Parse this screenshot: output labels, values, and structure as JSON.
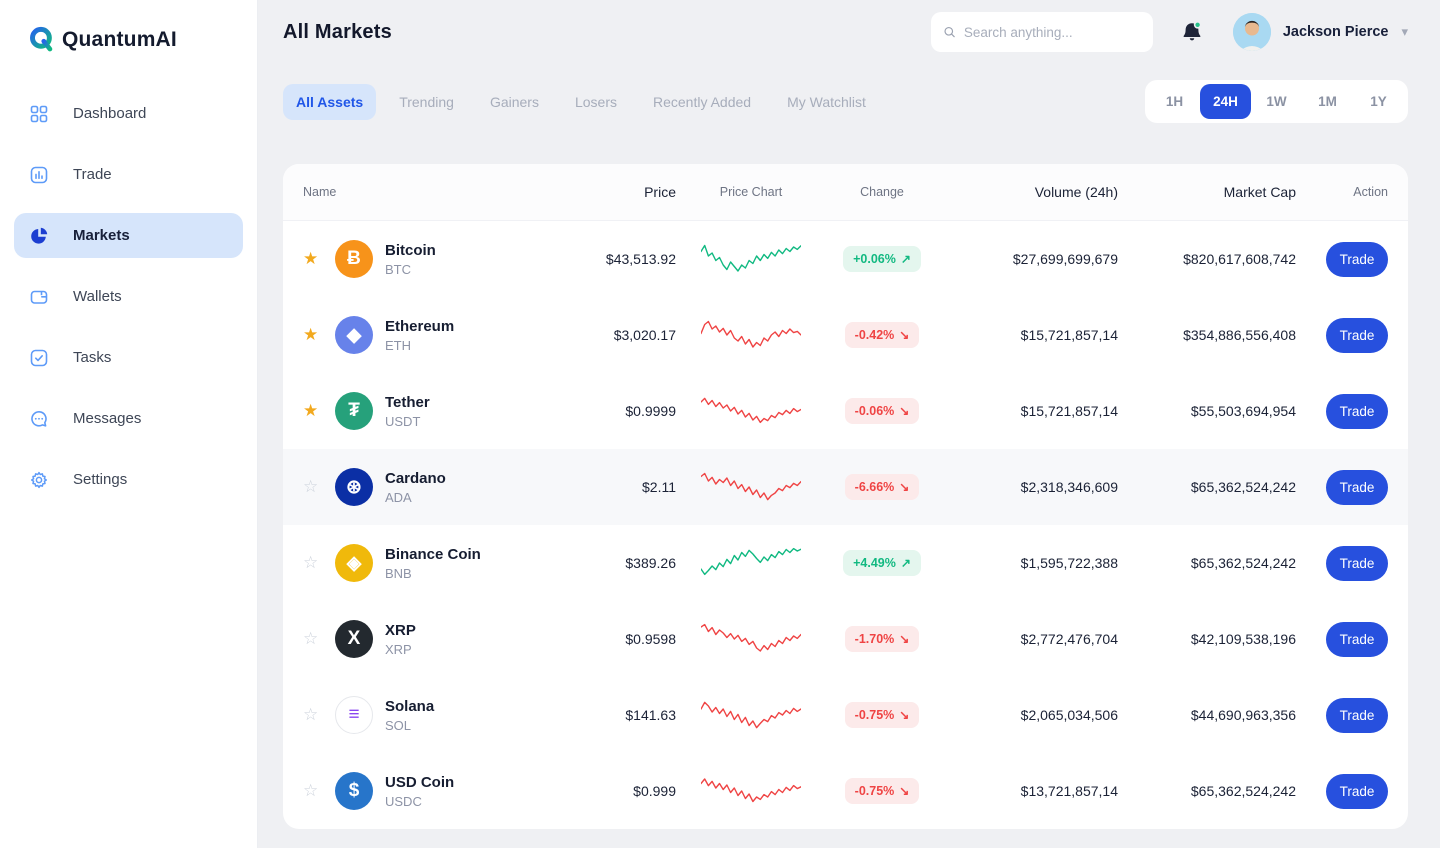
{
  "brand": {
    "logo_text": "QuantumAI"
  },
  "sidebar": {
    "items": [
      {
        "label": "Dashboard",
        "active": false
      },
      {
        "label": "Trade",
        "active": false
      },
      {
        "label": "Markets",
        "active": true
      },
      {
        "label": "Wallets",
        "active": false
      },
      {
        "label": "Tasks",
        "active": false
      },
      {
        "label": "Messages",
        "active": false
      },
      {
        "label": "Settings",
        "active": false
      }
    ]
  },
  "header": {
    "title": "All Markets",
    "search_placeholder": "Search anything...",
    "user_name": "Jackson Pierce"
  },
  "tabs": [
    {
      "label": "All Assets",
      "active": true
    },
    {
      "label": "Trending",
      "active": false
    },
    {
      "label": "Gainers",
      "active": false
    },
    {
      "label": "Losers",
      "active": false
    },
    {
      "label": "Recently Added",
      "active": false
    },
    {
      "label": "My Watchlist",
      "active": false
    }
  ],
  "time_ranges": [
    {
      "label": "1H",
      "active": false
    },
    {
      "label": "24H",
      "active": true
    },
    {
      "label": "1W",
      "active": false
    },
    {
      "label": "1M",
      "active": false
    },
    {
      "label": "1Y",
      "active": false
    }
  ],
  "table": {
    "columns": [
      "Name",
      "Price",
      "Price Chart",
      "Change",
      "Volume (24h)",
      "Market Cap",
      "Action"
    ],
    "action_label": "Trade",
    "rows": [
      {
        "name": "Bitcoin",
        "symbol": "BTC",
        "price": "$43,513.92",
        "change": "+0.06%",
        "trend": "up",
        "volume": "$27,699,699,679",
        "market_cap": "$820,617,608,742",
        "starred": true,
        "highlighted": false,
        "icon": {
          "glyph": "Ƀ",
          "bg": "#F7931A",
          "fg": "#FFFFFF"
        },
        "spark": [
          25,
          5,
          40,
          30,
          55,
          45,
          70,
          85,
          60,
          75,
          90,
          70,
          80,
          55,
          65,
          40,
          55,
          35,
          48,
          28,
          40,
          20,
          32,
          15,
          25,
          10,
          18,
          6
        ]
      },
      {
        "name": "Ethereum",
        "symbol": "ETH",
        "price": "$3,020.17",
        "change": "-0.42%",
        "trend": "down",
        "volume": "$15,721,857,14",
        "market_cap": "$354,886,556,408",
        "starred": true,
        "highlighted": false,
        "icon": {
          "glyph": "◆",
          "bg": "#6782EA",
          "fg": "#FFFFFF"
        },
        "spark": [
          45,
          15,
          5,
          30,
          20,
          40,
          28,
          50,
          35,
          60,
          70,
          55,
          80,
          65,
          90,
          75,
          85,
          60,
          70,
          50,
          40,
          55,
          35,
          45,
          30,
          42,
          38,
          50
        ]
      },
      {
        "name": "Tether",
        "symbol": "USDT",
        "price": "$0.9999",
        "change": "-0.06%",
        "trend": "down",
        "volume": "$15,721,857,14",
        "market_cap": "$55,503,694,954",
        "starred": true,
        "highlighted": false,
        "icon": {
          "glyph": "₮",
          "bg": "#26A17B",
          "fg": "#FFFFFF"
        },
        "spark": [
          20,
          8,
          28,
          15,
          35,
          22,
          40,
          30,
          50,
          38,
          60,
          48,
          70,
          58,
          80,
          68,
          88,
          75,
          82,
          65,
          72,
          55,
          62,
          48,
          58,
          42,
          52,
          45
        ]
      },
      {
        "name": "Cardano",
        "symbol": "ADA",
        "price": "$2.11",
        "change": "-6.66%",
        "trend": "down",
        "volume": "$2,318,346,609",
        "market_cap": "$65,362,524,242",
        "starred": false,
        "highlighted": true,
        "icon": {
          "glyph": "⊛",
          "bg": "#0B2FA5",
          "fg": "#FFFFFF"
        },
        "spark": [
          15,
          5,
          30,
          18,
          40,
          25,
          35,
          20,
          45,
          30,
          55,
          42,
          65,
          50,
          75,
          60,
          85,
          70,
          92,
          78,
          70,
          55,
          62,
          45,
          52,
          38,
          45,
          32
        ]
      },
      {
        "name": "Binance Coin",
        "symbol": "BNB",
        "price": "$389.26",
        "change": "+4.49%",
        "trend": "up",
        "volume": "$1,595,722,388",
        "market_cap": "$65,362,524,242",
        "starred": false,
        "highlighted": false,
        "icon": {
          "glyph": "◈",
          "bg": "#F0B90B",
          "fg": "#FFFFFF"
        },
        "spark": [
          70,
          88,
          75,
          60,
          72,
          50,
          62,
          38,
          52,
          25,
          40,
          15,
          28,
          8,
          20,
          35,
          48,
          30,
          42,
          22,
          32,
          12,
          22,
          5,
          15,
          2,
          10,
          4
        ]
      },
      {
        "name": "XRP",
        "symbol": "XRP",
        "price": "$0.9598",
        "change": "-1.70%",
        "trend": "down",
        "volume": "$2,772,476,704",
        "market_cap": "$42,109,538,196",
        "starred": false,
        "highlighted": false,
        "icon": {
          "glyph": "X",
          "bg": "#23292F",
          "fg": "#FFFFFF"
        },
        "spark": [
          10,
          2,
          25,
          12,
          35,
          20,
          30,
          45,
          32,
          50,
          38,
          58,
          48,
          68,
          58,
          80,
          90,
          72,
          85,
          65,
          75,
          55,
          65,
          45,
          55,
          40,
          48,
          35
        ]
      },
      {
        "name": "Solana",
        "symbol": "SOL",
        "price": "$141.63",
        "change": "-0.75%",
        "trend": "down",
        "volume": "$2,065,034,506",
        "market_cap": "$44,690,963,356",
        "starred": false,
        "highlighted": false,
        "icon": {
          "glyph": "≡",
          "bg": "#FFFFFF",
          "fg": "#8A46F0",
          "bd": "#E6E8EC"
        },
        "spark": [
          30,
          8,
          20,
          40,
          25,
          45,
          30,
          55,
          38,
          65,
          48,
          75,
          58,
          85,
          70,
          92,
          78,
          65,
          72,
          52,
          60,
          42,
          50,
          35,
          45,
          28,
          38,
          30
        ]
      },
      {
        "name": "USD Coin",
        "symbol": "USDC",
        "price": "$0.999",
        "change": "-0.75%",
        "trend": "down",
        "volume": "$13,721,857,14",
        "market_cap": "$65,362,524,242",
        "starred": false,
        "highlighted": false,
        "icon": {
          "glyph": "$",
          "bg": "#2775CA",
          "fg": "#FFFFFF"
        },
        "spark": [
          25,
          10,
          32,
          18,
          40,
          25,
          45,
          30,
          55,
          40,
          65,
          50,
          75,
          60,
          85,
          70,
          78,
          62,
          70,
          52,
          62,
          45,
          55,
          38,
          48,
          32,
          42,
          36
        ]
      }
    ]
  },
  "arrows": {
    "up": "↗",
    "down": "↘"
  },
  "colors": {
    "up": "#10B981",
    "down": "#EF4444",
    "accent": "#2750DE"
  }
}
